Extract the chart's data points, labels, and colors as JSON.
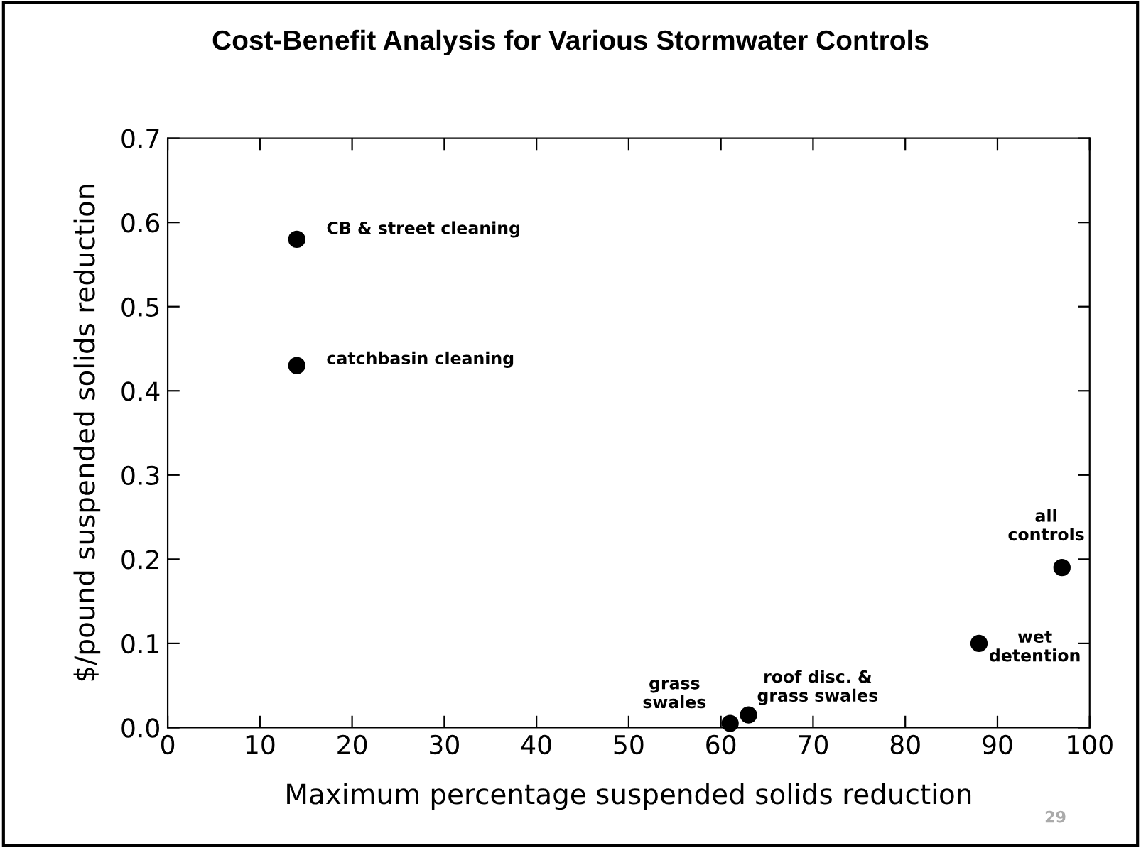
{
  "chart_data": {
    "type": "scatter",
    "title": "Cost-Benefit Analysis for Various Stormwater Controls",
    "xlabel": "Maximum percentage suspended solids reduction",
    "ylabel": "$/pound suspended solids reduction",
    "x": [
      14,
      14,
      61,
      63,
      88,
      97
    ],
    "values": [
      0.58,
      0.43,
      0.005,
      0.015,
      0.1,
      0.19
    ],
    "color": "#000000",
    "marker": "circle",
    "xlim": [
      0,
      100
    ],
    "ylim": [
      0,
      0.7
    ],
    "xticks": [
      0,
      10,
      20,
      30,
      40,
      50,
      60,
      70,
      80,
      90,
      100
    ],
    "yticks": [
      {
        "value": 0,
        "label": "0.0"
      },
      0.1,
      0.2,
      0.3,
      0.4,
      0.5,
      0.6,
      0.7
    ],
    "grid": false,
    "legend": false,
    "annotations": [
      {
        "text": "CB & street cleaning",
        "x": 14,
        "y": 0.58
      },
      {
        "text": "catchbasin cleaning",
        "x": 14,
        "y": 0.43
      },
      {
        "text": "grass\nswales",
        "x": 61,
        "y": 0.005
      },
      {
        "text": "roof disc. &\ngrass swales",
        "x": 63,
        "y": 0.015
      },
      {
        "text": "wet\ndetention",
        "x": 88,
        "y": 0.1
      },
      {
        "text": "all\ncontrols",
        "x": 97,
        "y": 0.19
      },
      "29"
    ]
  }
}
